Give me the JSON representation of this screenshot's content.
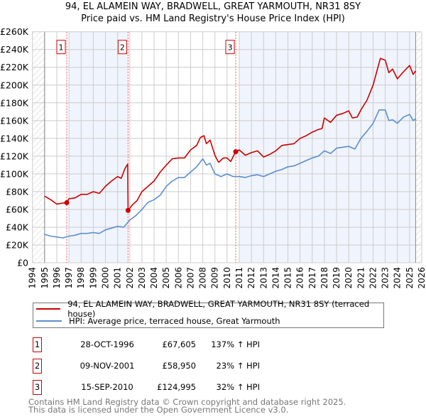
{
  "chart_data": {
    "type": "line",
    "title": "94, EL ALAMEIN WAY, BRADWELL, GREAT YARMOUTH, NR31 8SY",
    "subtitle": "Price paid vs. HM Land Registry's House Price Index (HPI)",
    "xlim": [
      1994,
      2026
    ],
    "ylim": [
      0,
      260000
    ],
    "x_ticks": [
      "1994",
      "1995",
      "1996",
      "1997",
      "1998",
      "1999",
      "2000",
      "2001",
      "2002",
      "2003",
      "2004",
      "2005",
      "2006",
      "2007",
      "2008",
      "2009",
      "2010",
      "2011",
      "2012",
      "2013",
      "2014",
      "2015",
      "2016",
      "2017",
      "2018",
      "2019",
      "2020",
      "2021",
      "2022",
      "2023",
      "2024",
      "2025",
      "2026"
    ],
    "y_ticks": [
      "£0",
      "£20K",
      "£40K",
      "£60K",
      "£80K",
      "£100K",
      "£120K",
      "£140K",
      "£160K",
      "£180K",
      "£200K",
      "£220K",
      "£240K",
      "£260K"
    ],
    "grid": true,
    "colors": {
      "property": "#cc0000",
      "hpi": "#5b8fd0",
      "band": "#f0f4fc"
    },
    "series": [
      {
        "name": "94, EL ALAMEIN WAY, BRADWELL, GREAT YARMOUTH, NR31 8SY (terraced house)",
        "x": [
          1995,
          1995.5,
          1996,
          1996.4,
          1996.8,
          1997,
          1997.5,
          1998,
          1998.5,
          1999,
          1999.5,
          2000,
          2000.5,
          2001,
          2001.3,
          2001.6,
          2001.83,
          2001.86,
          2002.2,
          2002.6,
          2003,
          2003.5,
          2004,
          2004.5,
          2005,
          2005.5,
          2006,
          2006.5,
          2007,
          2007.5,
          2007.8,
          2008.1,
          2008.3,
          2008.6,
          2009,
          2009.3,
          2009.7,
          2010,
          2010.3,
          2010.7,
          2011,
          2011.5,
          2012,
          2012.5,
          2013,
          2013.5,
          2014,
          2014.5,
          2015,
          2015.5,
          2016,
          2016.5,
          2017,
          2017.5,
          2017.8,
          2018,
          2018.5,
          2019,
          2019.5,
          2020,
          2020.3,
          2020.7,
          2021,
          2021.5,
          2022,
          2022.3,
          2022.6,
          2023,
          2023.3,
          2023.6,
          2024,
          2024.5,
          2025,
          2025.3,
          2025.5
        ],
        "y": [
          75000,
          71000,
          66000,
          67000,
          67605,
          72000,
          73000,
          77000,
          77000,
          80000,
          78000,
          86000,
          92000,
          97000,
          95000,
          106000,
          111000,
          58950,
          65000,
          70000,
          80000,
          86000,
          92000,
          102000,
          110000,
          117000,
          118000,
          118000,
          127000,
          132000,
          141000,
          143000,
          134000,
          138000,
          121000,
          113000,
          118000,
          118000,
          114000,
          124995,
          127000,
          121000,
          124000,
          126000,
          119000,
          122000,
          126000,
          132000,
          133000,
          134000,
          140000,
          143000,
          147000,
          150000,
          151000,
          163000,
          158000,
          166000,
          168000,
          171000,
          163000,
          164000,
          172000,
          183000,
          200000,
          215000,
          230000,
          228000,
          214000,
          218000,
          207000,
          215000,
          222000,
          212000,
          216000
        ]
      },
      {
        "name": "HPI: Average price, terraced house, Great Yarmouth",
        "x": [
          1995,
          1995.5,
          1996,
          1996.5,
          1997,
          1997.5,
          1998,
          1998.5,
          1999,
          1999.5,
          2000,
          2000.5,
          2001,
          2001.5,
          2002,
          2002.5,
          2003,
          2003.5,
          2004,
          2004.5,
          2005,
          2005.5,
          2006,
          2006.5,
          2007,
          2007.5,
          2008,
          2008.3,
          2008.6,
          2009,
          2009.5,
          2010,
          2010.5,
          2011,
          2011.5,
          2012,
          2012.5,
          2013,
          2013.5,
          2014,
          2014.5,
          2015,
          2015.5,
          2016,
          2016.5,
          2017,
          2017.5,
          2018,
          2018.5,
          2019,
          2019.5,
          2020,
          2020.5,
          2021,
          2021.5,
          2022,
          2022.5,
          2023,
          2023.3,
          2023.6,
          2024,
          2024.5,
          2025,
          2025.3,
          2025.5
        ],
        "y": [
          32000,
          30000,
          29000,
          28000,
          30000,
          31000,
          33000,
          33000,
          34000,
          33000,
          37000,
          39000,
          41000,
          40000,
          48000,
          53000,
          60000,
          68000,
          71000,
          76000,
          86000,
          92000,
          96000,
          96000,
          102000,
          108000,
          117000,
          110000,
          112000,
          100000,
          97000,
          100000,
          97000,
          97000,
          96000,
          98000,
          99000,
          97000,
          100000,
          103000,
          105000,
          108000,
          109000,
          112000,
          115000,
          118000,
          120000,
          126000,
          123000,
          129000,
          130000,
          131000,
          128000,
          140000,
          148000,
          157000,
          172000,
          172000,
          160000,
          161000,
          157000,
          164000,
          167000,
          160000,
          162000
        ]
      }
    ],
    "sales": [
      {
        "label": "1",
        "x": 1996.82,
        "price": 67605,
        "date": "28-OCT-1996",
        "price_text": "£67,605",
        "hpi_text": "137% ↑ HPI"
      },
      {
        "label": "2",
        "x": 2001.86,
        "price": 58950,
        "date": "09-NOV-2001",
        "price_text": "£58,950",
        "hpi_text": "23% ↑ HPI"
      },
      {
        "label": "3",
        "x": 2010.71,
        "price": 124995,
        "date": "15-SEP-2010",
        "price_text": "£124,995",
        "hpi_text": "32% ↑ HPI"
      }
    ],
    "bands": [
      [
        1996.97,
        2001.86
      ],
      [
        2010.99,
        2025.5
      ]
    ],
    "hatch": [
      [
        1994,
        1995
      ],
      [
        2025.5,
        2026
      ]
    ]
  },
  "legend": {
    "property": "94, EL ALAMEIN WAY, BRADWELL, GREAT YARMOUTH, NR31 8SY (terraced house)",
    "hpi": "HPI: Average price, terraced house, Great Yarmouth"
  },
  "footer": {
    "line1": "Contains HM Land Registry data © Crown copyright and database right 2025.",
    "line2": "This data is licensed under the Open Government Licence v3.0."
  }
}
